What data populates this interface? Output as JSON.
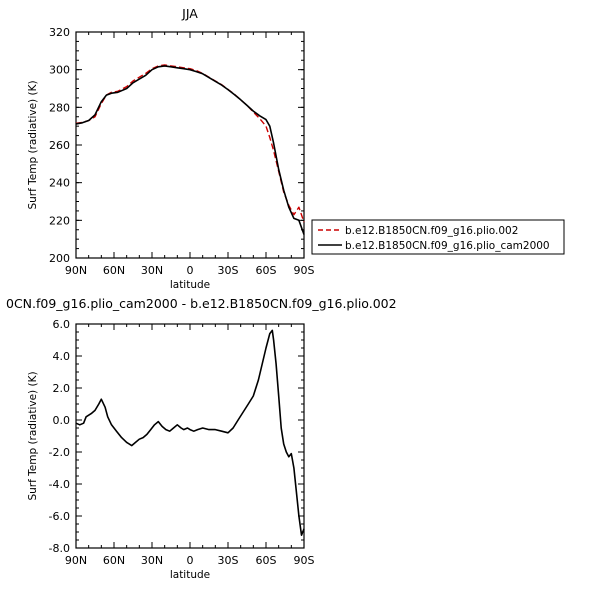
{
  "chart_data": [
    {
      "type": "line",
      "title": "JJA",
      "xlabel": "latitude",
      "ylabel": "Surf Temp (radiative) (K)",
      "xlim": [
        90,
        -90
      ],
      "ylim": [
        200,
        320
      ],
      "xtick_values": [
        90,
        60,
        30,
        0,
        -30,
        -60,
        -90
      ],
      "xtick_labels": [
        "90N",
        "60N",
        "30N",
        "0",
        "30S",
        "60S",
        "90S"
      ],
      "ytick_values": [
        200,
        220,
        240,
        260,
        280,
        300,
        320
      ],
      "ytick_labels": [
        "200",
        "220",
        "240",
        "260",
        "280",
        "300",
        "320"
      ],
      "legend": "right",
      "series": [
        {
          "name": "b.e12.B1850CN.f09_g16.plio.002",
          "color": "#cc0000",
          "dash": "dashed",
          "x": [
            90,
            85,
            80,
            75,
            70,
            66,
            62,
            57,
            50,
            45,
            40,
            35,
            30,
            25,
            20,
            15,
            10,
            5,
            0,
            -5,
            -10,
            -15,
            -20,
            -25,
            -30,
            -35,
            -40,
            -45,
            -50,
            -55,
            -60,
            -63,
            -66,
            -70,
            -74,
            -78,
            -82,
            -86,
            -90
          ],
          "y": [
            271.5,
            272,
            273,
            275,
            282,
            286.5,
            288,
            288.5,
            291,
            294,
            296,
            298,
            300.5,
            302,
            302.5,
            302,
            301.5,
            301,
            300.5,
            299.5,
            298,
            296,
            294,
            292,
            289.5,
            287,
            284,
            281,
            277.5,
            274,
            270,
            264,
            257,
            246,
            235,
            228,
            223,
            227,
            219
          ]
        },
        {
          "name": "b.e12.B1850CN.f09_g16.plio_cam2000",
          "color": "#000000",
          "dash": "solid",
          "x": [
            90,
            85,
            80,
            75,
            70,
            66,
            62,
            57,
            50,
            45,
            40,
            35,
            30,
            25,
            20,
            15,
            10,
            5,
            0,
            -5,
            -10,
            -15,
            -20,
            -25,
            -30,
            -35,
            -40,
            -45,
            -50,
            -55,
            -60,
            -63,
            -66,
            -70,
            -74,
            -78,
            -82,
            -86,
            -90
          ],
          "y": [
            271.2,
            271.8,
            273,
            276,
            283,
            286.5,
            287.5,
            288,
            290,
            293,
            295,
            297,
            300,
            301.5,
            302,
            301.5,
            301,
            300.5,
            300,
            299,
            297.8,
            295.8,
            293.8,
            291.8,
            289.4,
            286.8,
            284,
            281,
            278,
            275.5,
            273.5,
            270,
            261,
            247,
            236,
            227,
            221,
            220,
            212.5
          ]
        }
      ]
    },
    {
      "type": "line",
      "title": "0CN.f09_g16.plio_cam2000 - b.e12.B1850CN.f09_g16.plio.002",
      "xlabel": "latitude",
      "ylabel": "Surf Temp (radiative) (K)",
      "xlim": [
        90,
        -90
      ],
      "ylim": [
        -8,
        6
      ],
      "xtick_values": [
        90,
        60,
        30,
        0,
        -30,
        -60,
        -90
      ],
      "xtick_labels": [
        "90N",
        "60N",
        "30N",
        "0",
        "30S",
        "60S",
        "90S"
      ],
      "ytick_values": [
        -8,
        -6,
        -4,
        -2,
        0,
        2,
        4,
        6
      ],
      "ytick_labels": [
        "-8.0",
        "-6.0",
        "-4.0",
        "-2.0",
        "0.0",
        "2.0",
        "4.0",
        "6.0"
      ],
      "series": [
        {
          "name": "",
          "color": "#000000",
          "x": [
            90,
            87,
            84,
            82,
            78,
            75,
            72,
            70,
            67,
            65,
            62,
            58,
            54,
            50,
            46,
            43,
            40,
            37,
            34,
            31,
            28,
            25,
            22,
            19,
            16,
            13,
            10,
            7,
            5,
            2,
            0,
            -3,
            -6,
            -10,
            -15,
            -20,
            -25,
            -30,
            -34,
            -38,
            -42,
            -46,
            -50,
            -54,
            -57,
            -60,
            -63,
            -65,
            -66,
            -68,
            -70,
            -72,
            -74,
            -76,
            -78,
            -80,
            -82,
            -84,
            -86,
            -88,
            -90
          ],
          "y": [
            -0.2,
            -0.3,
            -0.2,
            0.2,
            0.4,
            0.6,
            1.0,
            1.3,
            0.8,
            0.2,
            -0.3,
            -0.7,
            -1.1,
            -1.4,
            -1.6,
            -1.4,
            -1.2,
            -1.1,
            -0.9,
            -0.6,
            -0.3,
            -0.1,
            -0.4,
            -0.6,
            -0.7,
            -0.5,
            -0.3,
            -0.5,
            -0.6,
            -0.5,
            -0.6,
            -0.7,
            -0.6,
            -0.5,
            -0.6,
            -0.6,
            -0.7,
            -0.8,
            -0.5,
            0.0,
            0.5,
            1.0,
            1.5,
            2.5,
            3.5,
            4.5,
            5.4,
            5.6,
            5.0,
            3.5,
            1.5,
            -0.5,
            -1.5,
            -2.0,
            -2.3,
            -2.1,
            -3.0,
            -4.5,
            -6.0,
            -7.2,
            -6.8
          ]
        }
      ]
    }
  ]
}
